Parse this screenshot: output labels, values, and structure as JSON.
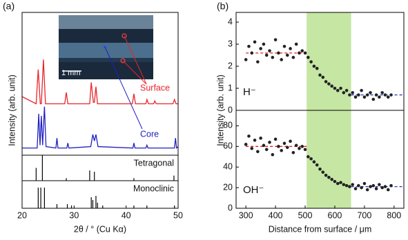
{
  "chart_data": [
    {
      "type": "line",
      "panel_label": "(a)",
      "ylabel": "Intensity (arb. unit)",
      "scale_bar": "1 mm",
      "xlim": [
        20,
        50
      ],
      "ylim": [
        0,
        10
      ],
      "series": [
        {
          "name": "Surface",
          "color": "#e8242a",
          "x": [
            20,
            22.7,
            23.1,
            23.5,
            23.7,
            24.1,
            24.5,
            28.2,
            28.5,
            28.8,
            33.0,
            33.3,
            33.7,
            33.9,
            34.2,
            34.5,
            41.2,
            41.5,
            41.8,
            43.8,
            44.0,
            44.3,
            45.3,
            45.5,
            45.8,
            49.0,
            49.3,
            49.6,
            50
          ],
          "values": [
            4.1,
            3.6,
            6.0,
            3.6,
            3.6,
            6.7,
            3.6,
            3.6,
            4.4,
            3.6,
            3.6,
            5.1,
            3.7,
            3.7,
            4.8,
            3.6,
            3.6,
            4.3,
            3.6,
            3.6,
            3.9,
            3.6,
            3.6,
            3.8,
            3.6,
            3.6,
            3.9,
            3.6,
            3.6
          ]
        },
        {
          "name": "Core",
          "color": "#2020c0",
          "x": [
            20,
            22.9,
            23.2,
            23.45,
            23.7,
            23.95,
            24.3,
            24.6,
            26.5,
            26.7,
            26.9,
            28.6,
            28.8,
            29.0,
            33.2,
            33.6,
            33.9,
            34.2,
            34.6,
            41.3,
            41.5,
            41.7,
            43.8,
            44.0,
            44.2,
            49.3,
            49.5,
            49.7,
            50
          ],
          "values": [
            0.5,
            0.5,
            2.9,
            0.7,
            2.75,
            0.7,
            3.4,
            0.6,
            0.5,
            1.2,
            0.5,
            0.5,
            0.85,
            0.5,
            0.6,
            1.45,
            1.0,
            1.45,
            0.6,
            0.5,
            0.85,
            0.5,
            0.5,
            0.7,
            0.5,
            0.5,
            1.2,
            0.5,
            0.6
          ]
        }
      ]
    },
    {
      "type": "stem",
      "title": "Tetragonal",
      "xlim": [
        20,
        50
      ],
      "ylim": [
        0,
        1
      ],
      "color": "#000000",
      "x": [
        22.7,
        23.9,
        28.5,
        33.0,
        33.9,
        41.5,
        49.2
      ],
      "values": [
        0.5,
        1.0,
        0.1,
        0.4,
        0.35,
        0.1,
        0.2
      ]
    },
    {
      "type": "stem",
      "title": "Monoclinic",
      "xlabel": "2θ / ° (Cu Kα)",
      "xlim": [
        20,
        50
      ],
      "ylim": [
        0,
        1
      ],
      "xticks": [
        20,
        30,
        40,
        50
      ],
      "color": "#000000",
      "x": [
        23.1,
        23.6,
        24.3,
        26.7,
        28.7,
        29.5,
        33.3,
        33.6,
        34.2,
        34.5,
        35.5,
        41.5,
        44.0,
        49.3
      ],
      "values": [
        0.75,
        0.75,
        0.75,
        0.15,
        0.15,
        0.1,
        0.4,
        0.3,
        0.45,
        0.2,
        0.1,
        0.1,
        0.1,
        0.1
      ]
    },
    {
      "type": "scatter",
      "panel_label": "(b)",
      "ylabel": "Intensity (arb. unit)",
      "label": "H⁻",
      "xlim": [
        267,
        833
      ],
      "ylim": [
        0,
        4.44
      ],
      "yticks": [
        0,
        1,
        2,
        3,
        4
      ],
      "color": "#222222",
      "band": [
        505,
        655
      ],
      "band_color": "#c6e6a4",
      "fits": [
        {
          "value": 2.6,
          "x": [
            300,
            505
          ],
          "color": "#e02020"
        },
        {
          "value": 0.7,
          "x": [
            655,
            833
          ],
          "color": "#2030c0"
        }
      ],
      "x": [
        300,
        310,
        320,
        330,
        340,
        350,
        360,
        370,
        380,
        390,
        400,
        410,
        420,
        430,
        440,
        450,
        460,
        470,
        480,
        490,
        500,
        510,
        520,
        530,
        540,
        550,
        560,
        570,
        580,
        590,
        600,
        610,
        620,
        630,
        640,
        650,
        660,
        670,
        680,
        690,
        700,
        710,
        720,
        730,
        740,
        750,
        760,
        770,
        780,
        790
      ],
      "values": [
        2.3,
        2.9,
        2.6,
        3.1,
        2.2,
        2.8,
        3.0,
        2.5,
        2.7,
        2.4,
        3.2,
        2.6,
        2.3,
        2.9,
        2.5,
        2.8,
        2.4,
        3.0,
        2.6,
        2.7,
        2.6,
        2.4,
        2.2,
        2.0,
        1.9,
        1.6,
        1.5,
        1.3,
        1.2,
        1.1,
        1.0,
        0.9,
        1.0,
        0.8,
        0.9,
        0.7,
        0.8,
        0.6,
        0.7,
        0.9,
        0.6,
        0.7,
        0.8,
        0.5,
        0.7,
        0.6,
        0.8,
        0.7,
        0.6,
        0.7
      ]
    },
    {
      "type": "scatter",
      "label": "OH⁻",
      "xlabel": "Distance from surface / μm",
      "xlim": [
        267,
        833
      ],
      "ylim": [
        0,
        95
      ],
      "yticks": [
        0,
        20,
        40,
        60,
        80
      ],
      "xticks": [
        300,
        400,
        500,
        600,
        700,
        800
      ],
      "color": "#222222",
      "band": [
        505,
        655
      ],
      "band_color": "#c6e6a4",
      "fits": [
        {
          "value": 60,
          "x": [
            300,
            505
          ],
          "color": "#e02020"
        },
        {
          "value": 21,
          "x": [
            655,
            833
          ],
          "color": "#2030c0"
        }
      ],
      "x": [
        300,
        310,
        320,
        330,
        340,
        350,
        360,
        370,
        380,
        390,
        400,
        410,
        420,
        430,
        440,
        450,
        460,
        470,
        480,
        490,
        500,
        510,
        520,
        530,
        540,
        550,
        560,
        570,
        580,
        590,
        600,
        610,
        620,
        630,
        640,
        650,
        660,
        670,
        680,
        690,
        700,
        710,
        720,
        730,
        740,
        750,
        760,
        770,
        780,
        790
      ],
      "values": [
        62,
        70,
        58,
        66,
        55,
        68,
        61,
        57,
        64,
        52,
        67,
        60,
        56,
        63,
        59,
        65,
        54,
        61,
        58,
        60,
        57,
        50,
        48,
        45,
        42,
        38,
        35,
        32,
        30,
        28,
        26,
        24,
        25,
        23,
        22,
        21,
        23,
        19,
        22,
        20,
        24,
        18,
        21,
        22,
        19,
        23,
        20,
        21,
        18,
        22
      ]
    }
  ]
}
